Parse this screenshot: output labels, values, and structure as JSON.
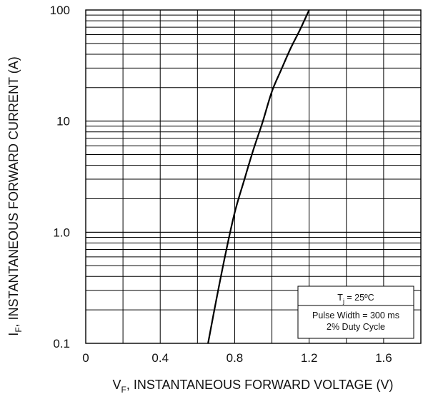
{
  "chart_data": {
    "type": "line",
    "title": "",
    "xlabel": {
      "main": "V",
      "sub": "F",
      "rest": ", INSTANTANEOUS FORWARD VOLTAGE (V)"
    },
    "ylabel": {
      "main": "I",
      "sub": "F",
      "rest": ", INSTANTANEOUS FORWARD CURRENT (A)"
    },
    "xlim": [
      0,
      1.8
    ],
    "ylim": [
      0.1,
      100
    ],
    "yscale": "log",
    "grid": true,
    "x_ticks": [
      {
        "value": 0,
        "label": "0"
      },
      {
        "value": 0.4,
        "label": "0.4"
      },
      {
        "value": 0.8,
        "label": "0.8"
      },
      {
        "value": 1.2,
        "label": "1.2"
      },
      {
        "value": 1.6,
        "label": "1.6"
      }
    ],
    "y_ticks": [
      {
        "value": 0.1,
        "label": "0.1"
      },
      {
        "value": 1,
        "label": "1.0"
      },
      {
        "value": 10,
        "label": "10"
      },
      {
        "value": 100,
        "label": "100"
      }
    ],
    "series": [
      {
        "x": [
          0.657,
          0.7,
          0.75,
          0.8,
          0.85,
          0.9,
          0.95,
          1.0,
          1.05,
          1.1,
          1.15,
          1.2
        ],
        "y": [
          0.1,
          0.24,
          0.63,
          1.5,
          2.9,
          5.5,
          9.8,
          18.5,
          29,
          45,
          66,
          100
        ]
      }
    ],
    "annotations": {
      "temp": {
        "main": "T",
        "sub": "j",
        "rest": " = 25ºC"
      },
      "pulse_line1": "Pulse Width = 300 ms",
      "pulse_line2": "2% Duty Cycle"
    }
  }
}
